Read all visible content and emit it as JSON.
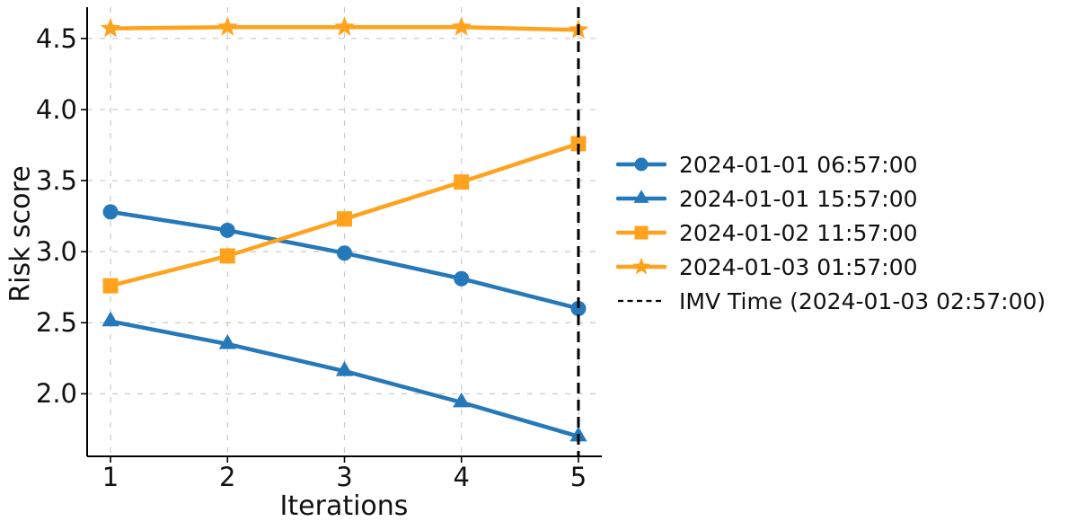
{
  "chart_data": {
    "type": "line",
    "title": "",
    "xlabel": "Iterations",
    "ylabel": "Risk score",
    "x": [
      1,
      2,
      3,
      4,
      5
    ],
    "xlim": [
      0.8,
      5.2
    ],
    "ylim": [
      1.56,
      4.72
    ],
    "grid": true,
    "legend_position": "right-outside",
    "xticks": [
      {
        "value": 1,
        "label": "1"
      },
      {
        "value": 2,
        "label": "2"
      },
      {
        "value": 3,
        "label": "3"
      },
      {
        "value": 4,
        "label": "4"
      },
      {
        "value": 5,
        "label": "5"
      }
    ],
    "yticks": [
      {
        "value": 2.0,
        "label": "2.0"
      },
      {
        "value": 2.5,
        "label": "2.5"
      },
      {
        "value": 3.0,
        "label": "3.0"
      },
      {
        "value": 3.5,
        "label": "3.5"
      },
      {
        "value": 4.0,
        "label": "4.0"
      },
      {
        "value": 4.5,
        "label": "4.5"
      }
    ],
    "series": [
      {
        "name": "2024-01-01 06:57:00",
        "marker": "circle",
        "color": "#2578b9",
        "values": [
          3.28,
          3.15,
          2.99,
          2.81,
          2.6
        ]
      },
      {
        "name": "2024-01-01 15:57:00",
        "marker": "triangle",
        "color": "#2578b9",
        "values": [
          2.51,
          2.35,
          2.16,
          1.94,
          1.7
        ]
      },
      {
        "name": "2024-01-02 11:57:00",
        "marker": "square",
        "color": "#ffa31e",
        "values": [
          2.76,
          2.97,
          3.23,
          3.49,
          3.76
        ]
      },
      {
        "name": "2024-01-03 01:57:00",
        "marker": "star",
        "color": "#ffa31e",
        "values": [
          4.57,
          4.58,
          4.58,
          4.58,
          4.56
        ]
      }
    ],
    "vline": {
      "x": 5,
      "label": "IMV Time (2024-01-03 02:57:00)",
      "color": "#000000",
      "style": "dashed"
    }
  },
  "colors": {
    "background": "#ffffff",
    "grid": "#c9c9c9",
    "spine": "#000000",
    "text": "#111111",
    "blue": "#2578b9",
    "orange": "#ffa31e"
  }
}
